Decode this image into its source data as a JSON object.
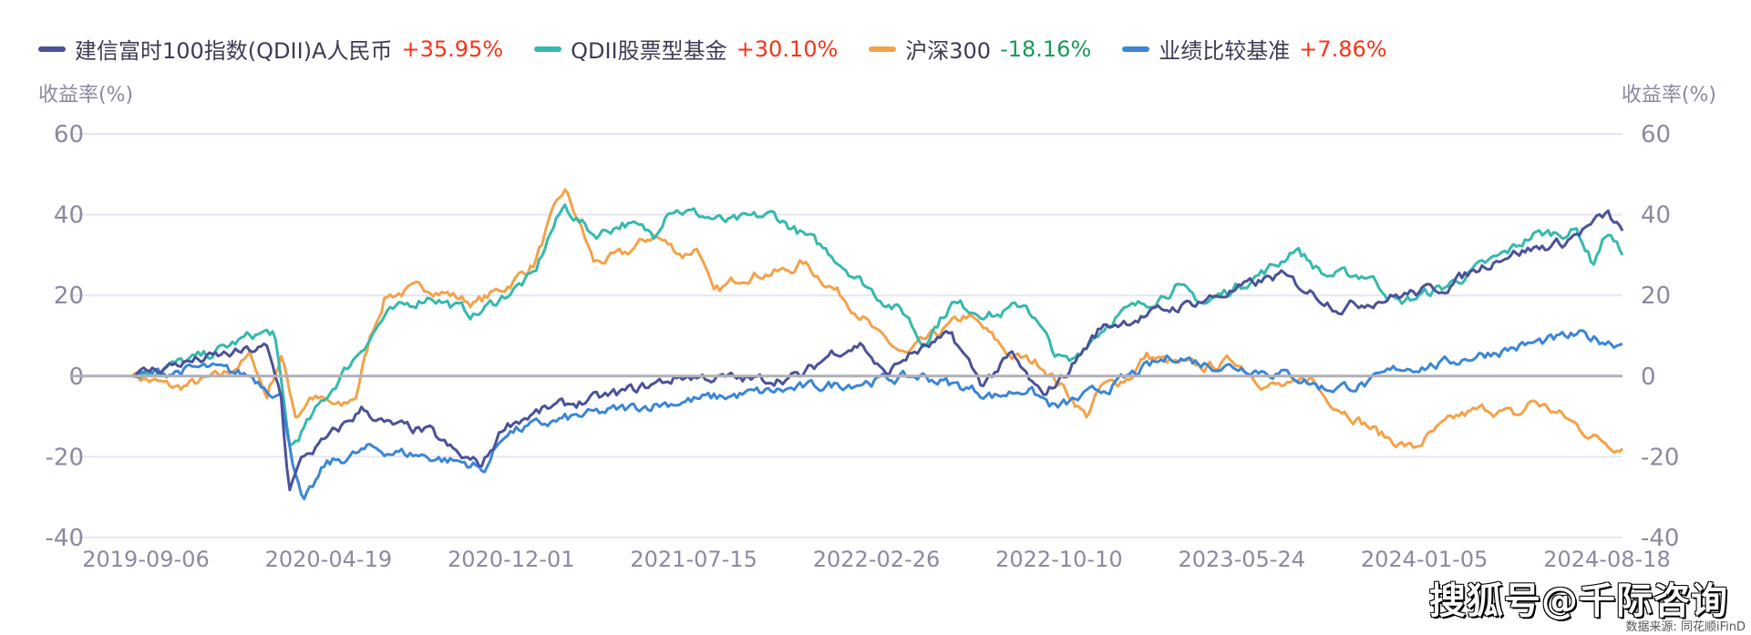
{
  "chart_data": {
    "type": "line",
    "y_axis_label_left": "收益率(%)",
    "y_axis_label_right": "收益率(%)",
    "ylim": [
      -40,
      60
    ],
    "y_ticks": [
      "60",
      "40",
      "20",
      "0",
      "-20",
      "-40"
    ],
    "y_tick_values": [
      60,
      40,
      20,
      0,
      -20,
      -40
    ],
    "x_ticks": [
      "2019-09-06",
      "2020-04-19",
      "2020-12-01",
      "2021-07-15",
      "2022-02-26",
      "2022-10-10",
      "2023-05-24",
      "2024-01-05",
      "2024-08-18"
    ],
    "legend_position": "top",
    "grid": true,
    "series": [
      {
        "name": "建信富时100指数(QDII)A人民币",
        "final": "+35.95%",
        "color": "#4a5299",
        "points": [
          [
            0,
            0
          ],
          [
            0.03,
            3
          ],
          [
            0.06,
            5
          ],
          [
            0.09,
            7
          ],
          [
            0.1,
            -5
          ],
          [
            0.105,
            -28
          ],
          [
            0.115,
            -20
          ],
          [
            0.13,
            -16
          ],
          [
            0.155,
            -8
          ],
          [
            0.17,
            -12
          ],
          [
            0.2,
            -14
          ],
          [
            0.22,
            -20
          ],
          [
            0.235,
            -22
          ],
          [
            0.25,
            -12
          ],
          [
            0.28,
            -8
          ],
          [
            0.32,
            -5
          ],
          [
            0.37,
            0
          ],
          [
            0.42,
            -1
          ],
          [
            0.45,
            0
          ],
          [
            0.47,
            6
          ],
          [
            0.49,
            8
          ],
          [
            0.505,
            0
          ],
          [
            0.52,
            5
          ],
          [
            0.55,
            10
          ],
          [
            0.57,
            -2
          ],
          [
            0.59,
            5
          ],
          [
            0.61,
            -5
          ],
          [
            0.625,
            0
          ],
          [
            0.65,
            12
          ],
          [
            0.7,
            17
          ],
          [
            0.73,
            20
          ],
          [
            0.77,
            25
          ],
          [
            0.81,
            17
          ],
          [
            0.85,
            20
          ],
          [
            0.88,
            22
          ],
          [
            0.92,
            30
          ],
          [
            0.96,
            33
          ],
          [
            0.99,
            40
          ],
          [
            1,
            36
          ]
        ]
      },
      {
        "name": "QDII股票型基金",
        "final": "+30.10%",
        "color": "#36b9ad",
        "points": [
          [
            0,
            0
          ],
          [
            0.05,
            5
          ],
          [
            0.08,
            10
          ],
          [
            0.095,
            11
          ],
          [
            0.106,
            -18
          ],
          [
            0.14,
            0
          ],
          [
            0.16,
            10
          ],
          [
            0.17,
            15
          ],
          [
            0.2,
            20
          ],
          [
            0.23,
            15
          ],
          [
            0.25,
            20
          ],
          [
            0.27,
            25
          ],
          [
            0.28,
            35
          ],
          [
            0.29,
            42
          ],
          [
            0.31,
            35
          ],
          [
            0.33,
            38
          ],
          [
            0.35,
            35
          ],
          [
            0.36,
            42
          ],
          [
            0.4,
            38
          ],
          [
            0.43,
            40
          ],
          [
            0.45,
            35
          ],
          [
            0.47,
            30
          ],
          [
            0.5,
            20
          ],
          [
            0.52,
            15
          ],
          [
            0.53,
            8
          ],
          [
            0.55,
            18
          ],
          [
            0.58,
            15
          ],
          [
            0.6,
            18
          ],
          [
            0.62,
            5
          ],
          [
            0.63,
            3
          ],
          [
            0.64,
            8
          ],
          [
            0.66,
            15
          ],
          [
            0.68,
            18
          ],
          [
            0.7,
            22
          ],
          [
            0.72,
            18
          ],
          [
            0.74,
            22
          ],
          [
            0.77,
            28
          ],
          [
            0.78,
            32
          ],
          [
            0.8,
            25
          ],
          [
            0.83,
            25
          ],
          [
            0.85,
            18
          ],
          [
            0.88,
            22
          ],
          [
            0.9,
            26
          ],
          [
            0.92,
            30
          ],
          [
            0.94,
            35
          ],
          [
            0.97,
            36
          ],
          [
            0.98,
            28
          ],
          [
            0.99,
            36
          ],
          [
            1,
            30
          ]
        ]
      },
      {
        "name": "沪深300",
        "final": "-18.16%",
        "color": "#f3a24a",
        "points": [
          [
            0,
            0
          ],
          [
            0.03,
            -3
          ],
          [
            0.06,
            0
          ],
          [
            0.08,
            5
          ],
          [
            0.09,
            -5
          ],
          [
            0.1,
            5
          ],
          [
            0.11,
            -10
          ],
          [
            0.12,
            -5
          ],
          [
            0.14,
            -8
          ],
          [
            0.15,
            -5
          ],
          [
            0.16,
            10
          ],
          [
            0.17,
            20
          ],
          [
            0.2,
            22
          ],
          [
            0.23,
            18
          ],
          [
            0.25,
            22
          ],
          [
            0.27,
            28
          ],
          [
            0.28,
            38
          ],
          [
            0.29,
            46
          ],
          [
            0.3,
            38
          ],
          [
            0.31,
            28
          ],
          [
            0.33,
            30
          ],
          [
            0.35,
            35
          ],
          [
            0.37,
            30
          ],
          [
            0.38,
            32
          ],
          [
            0.39,
            20
          ],
          [
            0.41,
            25
          ],
          [
            0.44,
            26
          ],
          [
            0.45,
            28
          ],
          [
            0.47,
            22
          ],
          [
            0.49,
            15
          ],
          [
            0.5,
            10
          ],
          [
            0.52,
            5
          ],
          [
            0.53,
            8
          ],
          [
            0.56,
            15
          ],
          [
            0.57,
            12
          ],
          [
            0.59,
            5
          ],
          [
            0.61,
            3
          ],
          [
            0.63,
            -5
          ],
          [
            0.64,
            -10
          ],
          [
            0.65,
            -3
          ],
          [
            0.67,
            0
          ],
          [
            0.68,
            5
          ],
          [
            0.7,
            3
          ],
          [
            0.72,
            2
          ],
          [
            0.74,
            4
          ],
          [
            0.76,
            -2
          ],
          [
            0.78,
            -3
          ],
          [
            0.79,
            0
          ],
          [
            0.8,
            -5
          ],
          [
            0.82,
            -10
          ],
          [
            0.84,
            -15
          ],
          [
            0.86,
            -18
          ],
          [
            0.87,
            -15
          ],
          [
            0.89,
            -10
          ],
          [
            0.91,
            -8
          ],
          [
            0.93,
            -10
          ],
          [
            0.94,
            -6
          ],
          [
            0.96,
            -10
          ],
          [
            0.98,
            -15
          ],
          [
            1,
            -18
          ]
        ]
      },
      {
        "name": "业绩比较基准",
        "final": "+7.86%",
        "color": "#3b86d6",
        "points": [
          [
            0,
            0
          ],
          [
            0.05,
            2
          ],
          [
            0.08,
            0
          ],
          [
            0.1,
            -5
          ],
          [
            0.11,
            -25
          ],
          [
            0.115,
            -32
          ],
          [
            0.13,
            -22
          ],
          [
            0.16,
            -18
          ],
          [
            0.2,
            -20
          ],
          [
            0.23,
            -22
          ],
          [
            0.235,
            -24
          ],
          [
            0.25,
            -14
          ],
          [
            0.3,
            -10
          ],
          [
            0.35,
            -7
          ],
          [
            0.4,
            -5
          ],
          [
            0.45,
            -3
          ],
          [
            0.5,
            -1
          ],
          [
            0.53,
            0
          ],
          [
            0.55,
            -2
          ],
          [
            0.58,
            -5
          ],
          [
            0.6,
            -3
          ],
          [
            0.62,
            -8
          ],
          [
            0.64,
            -5
          ],
          [
            0.66,
            -2
          ],
          [
            0.68,
            2
          ],
          [
            0.7,
            5
          ],
          [
            0.72,
            3
          ],
          [
            0.75,
            2
          ],
          [
            0.78,
            0
          ],
          [
            0.8,
            -3
          ],
          [
            0.83,
            -2
          ],
          [
            0.85,
            2
          ],
          [
            0.88,
            3
          ],
          [
            0.9,
            5
          ],
          [
            0.94,
            8
          ],
          [
            0.97,
            10
          ],
          [
            1,
            8
          ]
        ]
      }
    ]
  },
  "colors": {
    "positive": "#f5341a",
    "negative": "#1a9a5a"
  },
  "watermark": "搜狐号@千际咨询",
  "source": "数据来源: 同花顺iFinD"
}
